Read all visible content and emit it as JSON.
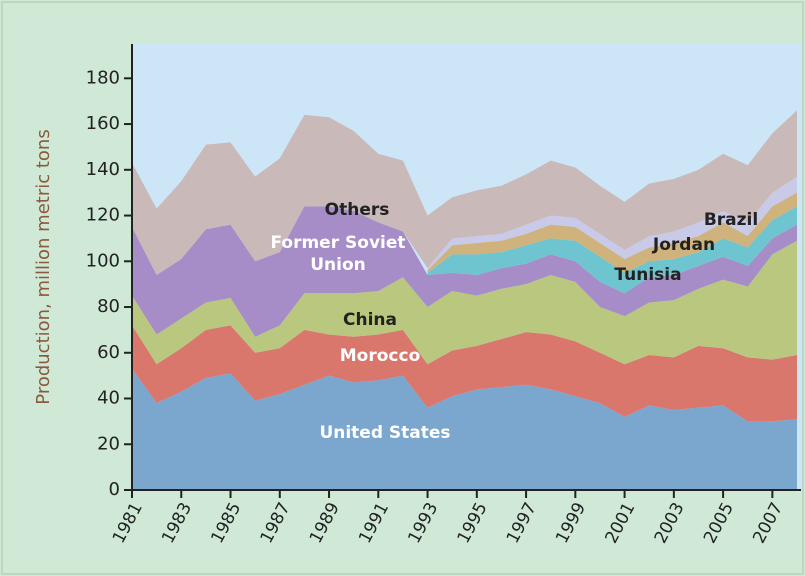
{
  "chart_data": {
    "type": "stacked_area",
    "y_label": "Production, million metric tons",
    "x": [
      1981,
      1982,
      1983,
      1984,
      1985,
      1986,
      1987,
      1988,
      1989,
      1990,
      1991,
      1992,
      1993,
      1994,
      1995,
      1996,
      1997,
      1998,
      1999,
      2000,
      2001,
      2002,
      2003,
      2004,
      2005,
      2006,
      2007,
      2008
    ],
    "xlim": [
      1981,
      2008
    ],
    "xticks": [
      1981,
      1983,
      1985,
      1987,
      1989,
      1991,
      1993,
      1995,
      1997,
      1999,
      2001,
      2003,
      2005,
      2007
    ],
    "ylim": [
      0,
      195
    ],
    "yticks": [
      0,
      20,
      40,
      60,
      80,
      100,
      120,
      140,
      160,
      180
    ],
    "series": [
      {
        "name": "United States",
        "color": "#7ba7cf",
        "values": [
          53,
          38,
          43,
          49,
          51,
          39,
          42,
          46,
          50,
          47,
          48,
          50,
          36,
          41,
          44,
          45,
          46,
          44,
          41,
          38,
          32,
          37,
          35,
          36,
          37,
          30,
          30,
          31
        ]
      },
      {
        "name": "Morocco",
        "color": "#d9776c",
        "values": [
          19,
          17,
          19,
          21,
          21,
          21,
          20,
          24,
          18,
          20,
          20,
          20,
          19,
          20,
          19,
          21,
          23,
          24,
          24,
          22,
          23,
          22,
          23,
          27,
          25,
          28,
          27,
          28
        ]
      },
      {
        "name": "China",
        "color": "#b9c87e",
        "values": [
          13,
          13,
          13,
          12,
          12,
          7,
          10,
          16,
          18,
          19,
          19,
          23,
          25,
          26,
          22,
          22,
          21,
          26,
          26,
          20,
          21,
          23,
          25,
          25,
          30,
          31,
          46,
          50
        ]
      },
      {
        "name": "Former Soviet Union",
        "color": "#a68dc8",
        "values": [
          30,
          26,
          26,
          32,
          32,
          33,
          32,
          38,
          38,
          36,
          30,
          20,
          14,
          8,
          9,
          9,
          9,
          9,
          9,
          11,
          10,
          11,
          11,
          10,
          10,
          9,
          7,
          7
        ]
      },
      {
        "name": "Tunisia",
        "color": "#6fc5cf",
        "values": [
          null,
          null,
          null,
          null,
          null,
          null,
          null,
          null,
          null,
          null,
          null,
          null,
          1,
          8,
          9,
          7,
          8,
          7,
          9,
          11,
          9,
          7,
          7,
          6,
          8,
          8,
          8,
          8
        ]
      },
      {
        "name": "Jordan",
        "color": "#cfb27c",
        "values": [
          null,
          null,
          null,
          null,
          null,
          null,
          null,
          null,
          null,
          null,
          null,
          null,
          1,
          4,
          5,
          5,
          5,
          6,
          6,
          6,
          6,
          6,
          7,
          7,
          7,
          5,
          6,
          6
        ]
      },
      {
        "name": "Brazil",
        "color": "#c9c9e8",
        "values": [
          null,
          null,
          null,
          null,
          null,
          null,
          null,
          null,
          null,
          null,
          null,
          null,
          1,
          3,
          3,
          3,
          4,
          4,
          4,
          4,
          4,
          5,
          5,
          6,
          5,
          6,
          6,
          7
        ]
      },
      {
        "name": "Others",
        "color": "#c9b9b9",
        "values": [
          28,
          29,
          34,
          37,
          36,
          37,
          41,
          40,
          39,
          35,
          30,
          31,
          23,
          18,
          20,
          21,
          22,
          24,
          22,
          21,
          21,
          23,
          23,
          23,
          25,
          25,
          26,
          29
        ]
      }
    ]
  }
}
